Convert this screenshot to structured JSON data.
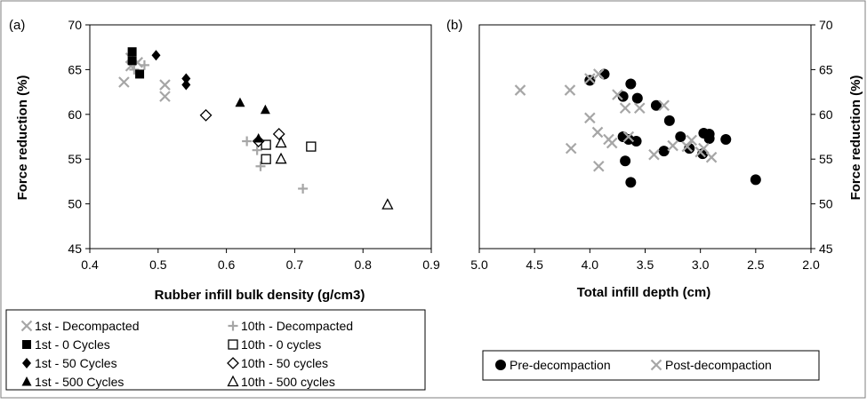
{
  "colors": {
    "black": "#000000",
    "gray": "#a6a6a6",
    "frame": "#7f7f7f"
  },
  "chart_data": [
    {
      "type": "scatter",
      "panel_label": "(a)",
      "xlabel": "Rubber infill bulk density (g/cm3)",
      "ylabel": "Force reduction (%)",
      "xlim": [
        0.4,
        0.9
      ],
      "ylim": [
        45,
        70
      ],
      "xticks": [
        "0.4",
        "0.5",
        "0.6",
        "0.7",
        "0.8",
        "0.9"
      ],
      "yticks": [
        "45",
        "50",
        "55",
        "60",
        "65",
        "70"
      ],
      "series": [
        {
          "name": "1st - Decompacted",
          "marker": "x",
          "color": "#a6a6a6",
          "points": [
            [
              0.45,
              63.6
            ],
            [
              0.46,
              65.4
            ],
            [
              0.46,
              66.3
            ],
            [
              0.47,
              65.8
            ],
            [
              0.51,
              63.3
            ],
            [
              0.51,
              62.0
            ]
          ]
        },
        {
          "name": "10th - Decompacted",
          "marker": "plus",
          "color": "#a6a6a6",
          "points": [
            [
              0.465,
              65.0
            ],
            [
              0.48,
              65.5
            ],
            [
              0.63,
              57.0
            ],
            [
              0.645,
              56.0
            ],
            [
              0.65,
              54.2
            ],
            [
              0.712,
              51.7
            ]
          ]
        },
        {
          "name": "1st - 0 Cycles",
          "marker": "square",
          "color": "#000000",
          "points": [
            [
              0.462,
              67.0
            ],
            [
              0.462,
              66.0
            ],
            [
              0.473,
              64.5
            ]
          ]
        },
        {
          "name": "10th - 0 cycles",
          "marker": "square-open",
          "color": "#000000",
          "points": [
            [
              0.658,
              56.6
            ],
            [
              0.658,
              55.0
            ],
            [
              0.724,
              56.4
            ]
          ]
        },
        {
          "name": "1st - 50 Cycles",
          "marker": "diamond",
          "color": "#000000",
          "points": [
            [
              0.497,
              66.6
            ],
            [
              0.541,
              64.0
            ],
            [
              0.541,
              63.3
            ]
          ]
        },
        {
          "name": "10th - 50 cycles",
          "marker": "diamond-open",
          "color": "#000000",
          "points": [
            [
              0.57,
              59.9
            ],
            [
              0.647,
              57.0
            ],
            [
              0.677,
              57.8
            ]
          ]
        },
        {
          "name": "1st - 500 Cycles",
          "marker": "triangle",
          "color": "#000000",
          "points": [
            [
              0.62,
              61.3
            ],
            [
              0.657,
              60.5
            ],
            [
              0.647,
              57.3
            ]
          ]
        },
        {
          "name": "10th - 500 cycles",
          "marker": "triangle-open",
          "color": "#000000",
          "points": [
            [
              0.68,
              56.8
            ],
            [
              0.68,
              55.0
            ],
            [
              0.836,
              49.9
            ]
          ]
        }
      ],
      "legend": [
        [
          "1st - Decompacted",
          "10th - Decompacted"
        ],
        [
          "1st - 0 Cycles",
          "10th - 0 cycles"
        ],
        [
          "1st - 50 Cycles",
          "10th - 50 cycles"
        ],
        [
          "1st - 500 Cycles",
          "10th - 500 cycles"
        ]
      ],
      "legend_position": "bottom"
    },
    {
      "type": "scatter",
      "panel_label": "(b)",
      "xlabel": "Total infill depth (cm)",
      "ylabel": "Force reduction (%)",
      "xlim": [
        5.0,
        2.0
      ],
      "ylim": [
        45,
        70
      ],
      "x_reversed": true,
      "xticks": [
        "5.0",
        "4.5",
        "4.0",
        "3.5",
        "3.0",
        "2.5",
        "2.0"
      ],
      "yticks": [
        "45",
        "50",
        "55",
        "60",
        "65",
        "70"
      ],
      "series": [
        {
          "name": "Pre-decompaction",
          "marker": "circle",
          "color": "#000000",
          "points": [
            [
              4.0,
              63.8
            ],
            [
              3.87,
              64.5
            ],
            [
              3.7,
              62.0
            ],
            [
              3.63,
              63.4
            ],
            [
              3.57,
              61.8
            ],
            [
              3.4,
              61.0
            ],
            [
              3.28,
              59.3
            ],
            [
              3.7,
              57.5
            ],
            [
              3.65,
              57.2
            ],
            [
              3.58,
              57.0
            ],
            [
              3.68,
              54.8
            ],
            [
              3.63,
              52.4
            ],
            [
              3.18,
              57.5
            ],
            [
              3.1,
              56.2
            ],
            [
              3.33,
              55.9
            ],
            [
              2.97,
              57.9
            ],
            [
              2.92,
              57.8
            ],
            [
              2.92,
              57.3
            ],
            [
              2.98,
              55.6
            ],
            [
              2.77,
              57.2
            ],
            [
              2.5,
              52.7
            ]
          ]
        },
        {
          "name": "Post-decompaction",
          "marker": "x",
          "color": "#a6a6a6",
          "points": [
            [
              4.63,
              62.7
            ],
            [
              4.18,
              62.7
            ],
            [
              4.0,
              64.0
            ],
            [
              3.92,
              64.5
            ],
            [
              3.75,
              62.2
            ],
            [
              3.68,
              60.7
            ],
            [
              3.55,
              60.7
            ],
            [
              3.33,
              61.0
            ],
            [
              4.0,
              59.6
            ],
            [
              3.93,
              58.0
            ],
            [
              3.83,
              57.2
            ],
            [
              3.8,
              56.8
            ],
            [
              3.65,
              57.5
            ],
            [
              4.17,
              56.2
            ],
            [
              3.92,
              54.2
            ],
            [
              3.42,
              55.5
            ],
            [
              3.25,
              56.5
            ],
            [
              3.08,
              57.1
            ],
            [
              3.12,
              56.4
            ],
            [
              3.0,
              55.8
            ],
            [
              2.97,
              56.2
            ],
            [
              2.9,
              55.2
            ]
          ]
        }
      ],
      "legend": [
        "Pre-decompaction",
        "Post-decompaction"
      ],
      "legend_position": "bottom"
    }
  ]
}
